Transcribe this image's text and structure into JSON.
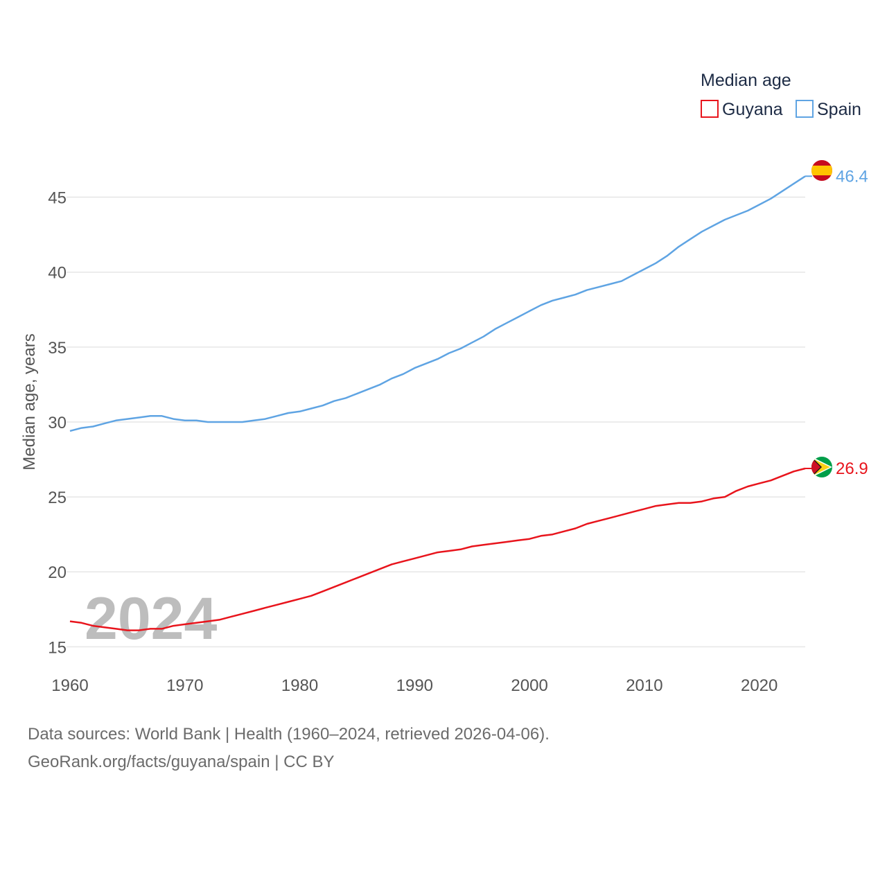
{
  "chart_data": {
    "type": "line",
    "legend_title": "Median age",
    "ylabel": "Median age, years",
    "watermark_year": "2024",
    "xlim": [
      1960,
      2024
    ],
    "ylim": [
      14,
      47.8
    ],
    "x_ticks": [
      1960,
      1970,
      1980,
      1990,
      2000,
      2010,
      2020
    ],
    "y_ticks": [
      15,
      20,
      25,
      30,
      35,
      40,
      45
    ],
    "x": [
      1960,
      1961,
      1962,
      1963,
      1964,
      1965,
      1966,
      1967,
      1968,
      1969,
      1970,
      1971,
      1972,
      1973,
      1974,
      1975,
      1976,
      1977,
      1978,
      1979,
      1980,
      1981,
      1982,
      1983,
      1984,
      1985,
      1986,
      1987,
      1988,
      1989,
      1990,
      1991,
      1992,
      1993,
      1994,
      1995,
      1996,
      1997,
      1998,
      1999,
      2000,
      2001,
      2002,
      2003,
      2004,
      2005,
      2006,
      2007,
      2008,
      2009,
      2010,
      2011,
      2012,
      2013,
      2014,
      2015,
      2016,
      2017,
      2018,
      2019,
      2020,
      2021,
      2022,
      2023,
      2024
    ],
    "series": [
      {
        "name": "Guyana",
        "color": "#e8141c",
        "end_label": "26.9",
        "flag": "guyana-flag-icon",
        "values": [
          16.7,
          16.6,
          16.4,
          16.3,
          16.2,
          16.1,
          16.1,
          16.2,
          16.2,
          16.4,
          16.5,
          16.6,
          16.7,
          16.8,
          17.0,
          17.2,
          17.4,
          17.6,
          17.8,
          18.0,
          18.2,
          18.4,
          18.7,
          19.0,
          19.3,
          19.6,
          19.9,
          20.2,
          20.5,
          20.7,
          20.9,
          21.1,
          21.3,
          21.4,
          21.5,
          21.7,
          21.8,
          21.9,
          22.0,
          22.1,
          22.2,
          22.4,
          22.5,
          22.7,
          22.9,
          23.2,
          23.4,
          23.6,
          23.8,
          24.0,
          24.2,
          24.4,
          24.5,
          24.6,
          24.6,
          24.7,
          24.9,
          25.0,
          25.4,
          25.7,
          25.9,
          26.1,
          26.4,
          26.7,
          26.9
        ]
      },
      {
        "name": "Spain",
        "color": "#5fa4e3",
        "end_label": "46.4",
        "flag": "spain-flag-icon",
        "values": [
          29.4,
          29.6,
          29.7,
          29.9,
          30.1,
          30.2,
          30.3,
          30.4,
          30.4,
          30.2,
          30.1,
          30.1,
          30.0,
          30.0,
          30.0,
          30.0,
          30.1,
          30.2,
          30.4,
          30.6,
          30.7,
          30.9,
          31.1,
          31.4,
          31.6,
          31.9,
          32.2,
          32.5,
          32.9,
          33.2,
          33.6,
          33.9,
          34.2,
          34.6,
          34.9,
          35.3,
          35.7,
          36.2,
          36.6,
          37.0,
          37.4,
          37.8,
          38.1,
          38.3,
          38.5,
          38.8,
          39.0,
          39.2,
          39.4,
          39.8,
          40.2,
          40.6,
          41.1,
          41.7,
          42.2,
          42.7,
          43.1,
          43.5,
          43.8,
          44.1,
          44.5,
          44.9,
          45.4,
          45.9,
          46.4
        ]
      }
    ]
  },
  "footer": {
    "line1": "Data sources: World Bank | Health (1960–2024, retrieved 2026-04-06).",
    "line2": "GeoRank.org/facts/guyana/spain | CC BY"
  }
}
